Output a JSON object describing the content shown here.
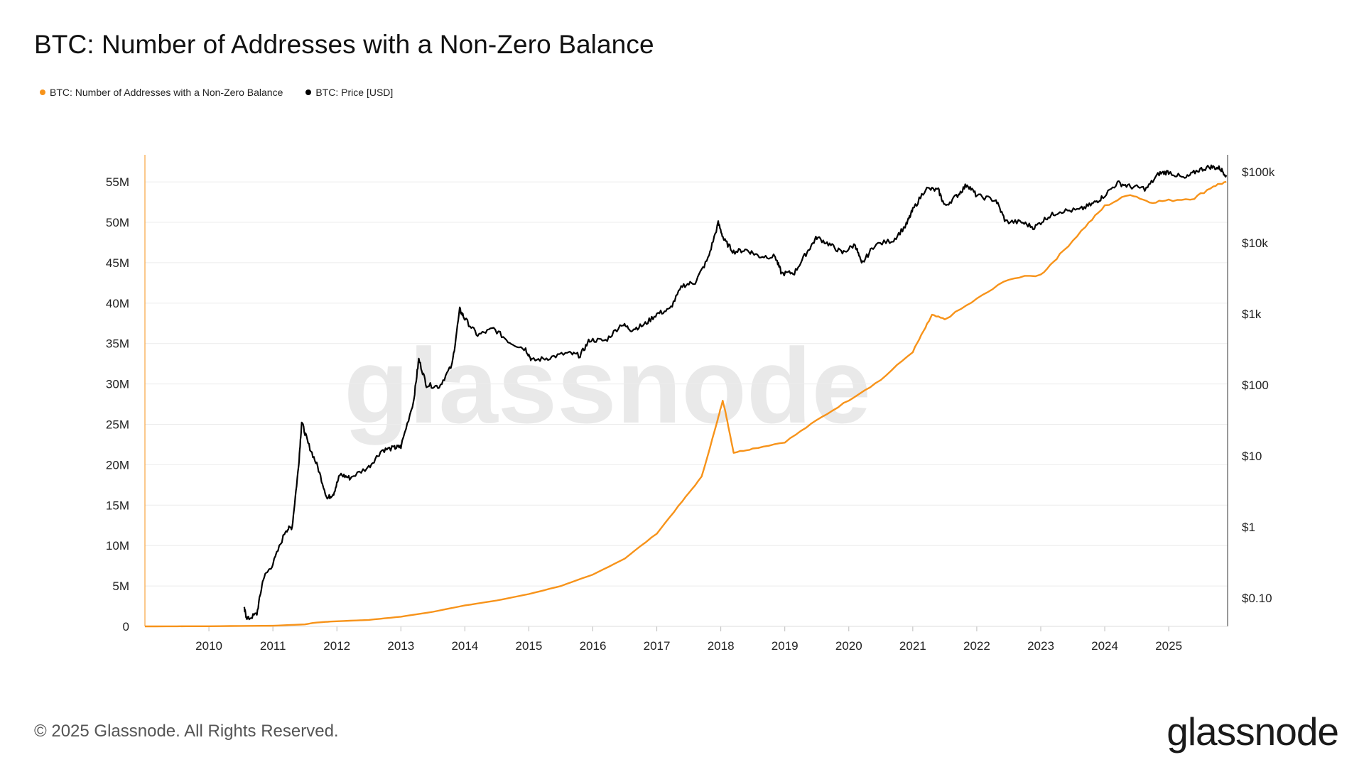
{
  "title": "BTC: Number of Addresses with a Non-Zero Balance",
  "legend": [
    {
      "label": "BTC: Number of Addresses with a Non-Zero Balance",
      "color": "#F7931A"
    },
    {
      "label": "BTC: Price [USD]",
      "color": "#000000"
    }
  ],
  "footer": "© 2025 Glassnode. All Rights Reserved.",
  "brand": "glassnode",
  "watermark": "glassnode",
  "chart_data": {
    "type": "line",
    "x_ticks": [
      "2010",
      "2011",
      "2012",
      "2013",
      "2014",
      "2015",
      "2016",
      "2017",
      "2018",
      "2019",
      "2020",
      "2021",
      "2022",
      "2023",
      "2024",
      "2025"
    ],
    "x_range": [
      2009.0,
      2025.92
    ],
    "left_axis": {
      "ticks": [
        "0",
        "5M",
        "10M",
        "15M",
        "20M",
        "25M",
        "30M",
        "35M",
        "40M",
        "45M",
        "50M",
        "55M"
      ],
      "range": [
        0,
        58000000
      ]
    },
    "right_axis": {
      "scale": "log",
      "ticks": [
        "$0.10",
        "$1",
        "$10",
        "$100",
        "$1k",
        "$10k",
        "$100k"
      ],
      "range_log10": [
        -1.4,
        5.2
      ]
    },
    "grid": true,
    "legend_position": "top-left",
    "series": [
      {
        "name": "BTC: Number of Addresses with a Non-Zero Balance",
        "axis": "left",
        "color": "#F7931A",
        "points": [
          [
            2009.0,
            0
          ],
          [
            2010.0,
            20000
          ],
          [
            2011.0,
            80000
          ],
          [
            2011.5,
            250000
          ],
          [
            2011.65,
            450000
          ],
          [
            2011.9,
            600000
          ],
          [
            2012.5,
            800000
          ],
          [
            2013.0,
            1200000
          ],
          [
            2013.5,
            1800000
          ],
          [
            2014.0,
            2600000
          ],
          [
            2014.5,
            3200000
          ],
          [
            2015.0,
            4000000
          ],
          [
            2015.5,
            5000000
          ],
          [
            2016.0,
            6400000
          ],
          [
            2016.5,
            8400000
          ],
          [
            2017.0,
            11500000
          ],
          [
            2017.4,
            15500000
          ],
          [
            2017.7,
            18500000
          ],
          [
            2017.95,
            25500000
          ],
          [
            2018.03,
            28000000
          ],
          [
            2018.1,
            25500000
          ],
          [
            2018.2,
            21500000
          ],
          [
            2018.5,
            22000000
          ],
          [
            2019.0,
            22800000
          ],
          [
            2019.5,
            25500000
          ],
          [
            2020.0,
            28000000
          ],
          [
            2020.5,
            30500000
          ],
          [
            2021.0,
            34000000
          ],
          [
            2021.2,
            37000000
          ],
          [
            2021.3,
            38500000
          ],
          [
            2021.5,
            38000000
          ],
          [
            2022.0,
            40500000
          ],
          [
            2022.5,
            43000000
          ],
          [
            2023.0,
            43500000
          ],
          [
            2023.3,
            46000000
          ],
          [
            2023.7,
            49500000
          ],
          [
            2024.0,
            52000000
          ],
          [
            2024.4,
            53500000
          ],
          [
            2024.7,
            52500000
          ],
          [
            2025.0,
            52700000
          ],
          [
            2025.4,
            53000000
          ],
          [
            2025.7,
            54500000
          ],
          [
            2025.9,
            55000000
          ]
        ]
      },
      {
        "name": "BTC: Price [USD]",
        "axis": "right",
        "color": "#000000",
        "points": [
          [
            2010.55,
            0.07
          ],
          [
            2010.6,
            0.05
          ],
          [
            2010.75,
            0.06
          ],
          [
            2010.85,
            0.19
          ],
          [
            2011.0,
            0.3
          ],
          [
            2011.2,
            0.9
          ],
          [
            2011.3,
            1.0
          ],
          [
            2011.4,
            7.0
          ],
          [
            2011.45,
            30.0
          ],
          [
            2011.55,
            15.0
          ],
          [
            2011.7,
            7.0
          ],
          [
            2011.85,
            2.5
          ],
          [
            2011.95,
            3.0
          ],
          [
            2012.05,
            5.5
          ],
          [
            2012.2,
            4.9
          ],
          [
            2012.5,
            7.0
          ],
          [
            2012.7,
            12.0
          ],
          [
            2012.9,
            13.0
          ],
          [
            2013.0,
            13.5
          ],
          [
            2013.2,
            60.0
          ],
          [
            2013.28,
            230.0
          ],
          [
            2013.4,
            100.0
          ],
          [
            2013.6,
            95.0
          ],
          [
            2013.8,
            190.0
          ],
          [
            2013.92,
            1150.0
          ],
          [
            2014.0,
            850.0
          ],
          [
            2014.2,
            500.0
          ],
          [
            2014.45,
            620.0
          ],
          [
            2014.7,
            400.0
          ],
          [
            2014.95,
            320.0
          ],
          [
            2015.05,
            220.0
          ],
          [
            2015.3,
            240.0
          ],
          [
            2015.6,
            280.0
          ],
          [
            2015.8,
            260.0
          ],
          [
            2015.95,
            430.0
          ],
          [
            2016.2,
            420.0
          ],
          [
            2016.45,
            720.0
          ],
          [
            2016.6,
            600.0
          ],
          [
            2016.8,
            700.0
          ],
          [
            2017.0,
            1000.0
          ],
          [
            2017.2,
            1150.0
          ],
          [
            2017.4,
            2500.0
          ],
          [
            2017.6,
            2800.0
          ],
          [
            2017.8,
            6000.0
          ],
          [
            2017.96,
            19000.0
          ],
          [
            2018.05,
            11000.0
          ],
          [
            2018.2,
            7500.0
          ],
          [
            2018.4,
            8000.0
          ],
          [
            2018.6,
            6500.0
          ],
          [
            2018.85,
            6400.0
          ],
          [
            2018.95,
            3700.0
          ],
          [
            2019.15,
            3800.0
          ],
          [
            2019.35,
            7500.0
          ],
          [
            2019.5,
            12000.0
          ],
          [
            2019.7,
            9500.0
          ],
          [
            2019.9,
            7200.0
          ],
          [
            2020.1,
            9500.0
          ],
          [
            2020.2,
            5000.0
          ],
          [
            2020.4,
            9300.0
          ],
          [
            2020.7,
            11000.0
          ],
          [
            2020.9,
            18000.0
          ],
          [
            2021.0,
            29000.0
          ],
          [
            2021.2,
            58000.0
          ],
          [
            2021.4,
            55000.0
          ],
          [
            2021.5,
            33000.0
          ],
          [
            2021.7,
            47000.0
          ],
          [
            2021.85,
            67000.0
          ],
          [
            2022.0,
            46000.0
          ],
          [
            2022.3,
            40000.0
          ],
          [
            2022.45,
            20000.0
          ],
          [
            2022.7,
            19500.0
          ],
          [
            2022.9,
            16500.0
          ],
          [
            2023.1,
            23000.0
          ],
          [
            2023.3,
            28000.0
          ],
          [
            2023.6,
            29000.0
          ],
          [
            2023.8,
            35000.0
          ],
          [
            2023.95,
            43000.0
          ],
          [
            2024.2,
            70000.0
          ],
          [
            2024.4,
            62000.0
          ],
          [
            2024.65,
            58000.0
          ],
          [
            2024.85,
            95000.0
          ],
          [
            2025.0,
            100000.0
          ],
          [
            2025.25,
            80000.0
          ],
          [
            2025.45,
            105000.0
          ],
          [
            2025.65,
            118000.0
          ],
          [
            2025.8,
            112000.0
          ],
          [
            2025.9,
            90000.0
          ]
        ]
      }
    ]
  }
}
